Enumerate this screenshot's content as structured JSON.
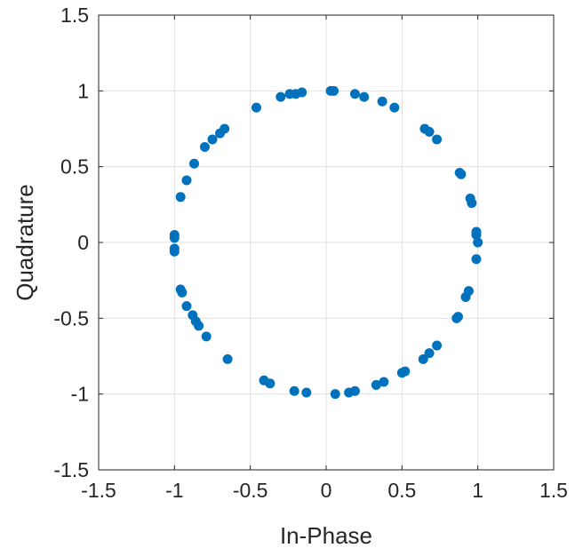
{
  "chart_data": {
    "type": "scatter",
    "title": "",
    "xlabel": "In-Phase",
    "ylabel": "Quadrature",
    "xlim": [
      -1.5,
      1.5
    ],
    "ylim": [
      -1.5,
      1.5
    ],
    "xticks": [
      -1.5,
      -1,
      -0.5,
      0,
      0.5,
      1,
      1.5
    ],
    "yticks": [
      -1.5,
      -1,
      -0.5,
      0,
      0.5,
      1,
      1.5
    ],
    "xtick_labels": [
      "-1.5",
      "-1",
      "-0.5",
      "0",
      "0.5",
      "1",
      "1.5"
    ],
    "ytick_labels": [
      "-1.5",
      "-1",
      "-0.5",
      "0",
      "0.5",
      "1",
      "1.5"
    ],
    "grid": true,
    "marker_color": "#0072BD",
    "series": [
      {
        "points": [
          [
            0.03,
            1.0
          ],
          [
            0.05,
            1.0
          ],
          [
            0.19,
            0.98
          ],
          [
            0.25,
            0.96
          ],
          [
            0.37,
            0.93
          ],
          [
            0.45,
            0.89
          ],
          [
            0.65,
            0.75
          ],
          [
            0.68,
            0.73
          ],
          [
            0.73,
            0.68
          ],
          [
            0.88,
            0.46
          ],
          [
            0.89,
            0.45
          ],
          [
            0.95,
            0.29
          ],
          [
            0.96,
            0.26
          ],
          [
            0.99,
            0.07
          ],
          [
            0.99,
            0.05
          ],
          [
            1.0,
            0.0
          ],
          [
            0.99,
            -0.11
          ],
          [
            0.94,
            -0.32
          ],
          [
            0.92,
            -0.36
          ],
          [
            0.87,
            -0.49
          ],
          [
            0.86,
            -0.5
          ],
          [
            0.73,
            -0.68
          ],
          [
            0.68,
            -0.73
          ],
          [
            0.64,
            -0.77
          ],
          [
            0.52,
            -0.85
          ],
          [
            0.5,
            -0.86
          ],
          [
            0.38,
            -0.92
          ],
          [
            0.33,
            -0.94
          ],
          [
            0.19,
            -0.98
          ],
          [
            0.15,
            -0.99
          ],
          [
            0.06,
            -1.0
          ],
          [
            -0.13,
            -0.99
          ],
          [
            -0.21,
            -0.98
          ],
          [
            -0.37,
            -0.93
          ],
          [
            -0.41,
            -0.91
          ],
          [
            -0.65,
            -0.77
          ],
          [
            -0.79,
            -0.62
          ],
          [
            -0.84,
            -0.55
          ],
          [
            -0.86,
            -0.52
          ],
          [
            -0.88,
            -0.48
          ],
          [
            -0.92,
            -0.42
          ],
          [
            -0.95,
            -0.33
          ],
          [
            -0.96,
            -0.31
          ],
          [
            -1.0,
            -0.06
          ],
          [
            -1.0,
            -0.04
          ],
          [
            -1.0,
            0.03
          ],
          [
            -1.0,
            0.05
          ],
          [
            -0.96,
            0.3
          ],
          [
            -0.92,
            0.41
          ],
          [
            -0.87,
            0.52
          ],
          [
            -0.8,
            0.63
          ],
          [
            -0.75,
            0.68
          ],
          [
            -0.7,
            0.72
          ],
          [
            -0.67,
            0.75
          ],
          [
            -0.46,
            0.89
          ],
          [
            -0.3,
            0.96
          ],
          [
            -0.24,
            0.98
          ],
          [
            -0.2,
            0.98
          ],
          [
            -0.16,
            0.99
          ]
        ]
      }
    ]
  }
}
